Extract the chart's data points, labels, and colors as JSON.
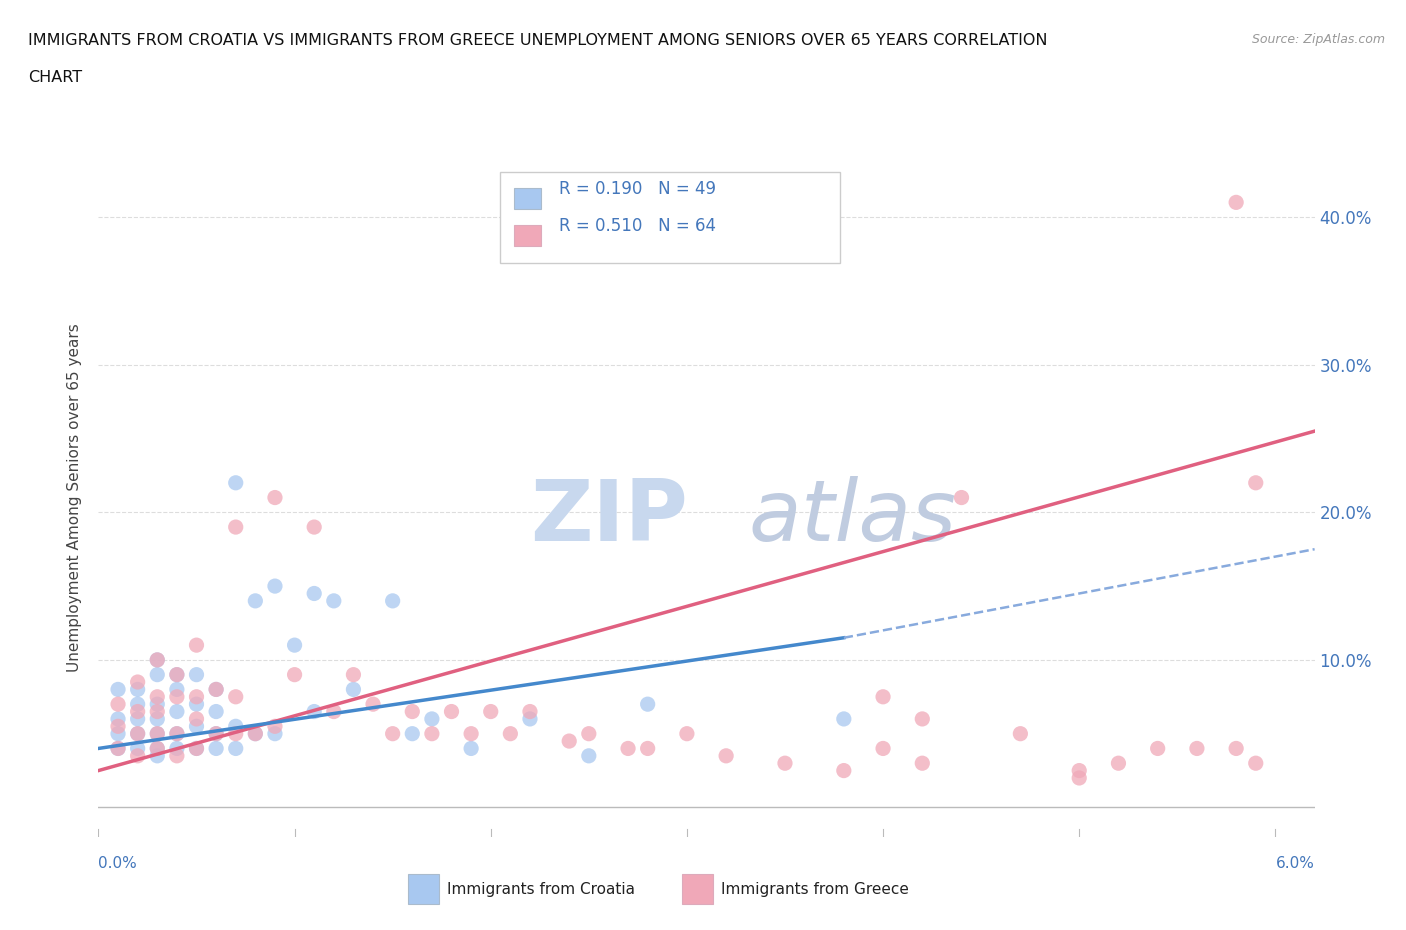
{
  "title_line1": "IMMIGRANTS FROM CROATIA VS IMMIGRANTS FROM GREECE UNEMPLOYMENT AMONG SENIORS OVER 65 YEARS CORRELATION",
  "title_line2": "CHART",
  "source": "Source: ZipAtlas.com",
  "ylabel": "Unemployment Among Seniors over 65 years",
  "ytick_values": [
    0.0,
    0.1,
    0.2,
    0.3,
    0.4
  ],
  "ytick_labels": [
    "",
    "10.0%",
    "20.0%",
    "30.0%",
    "40.0%"
  ],
  "xlim": [
    0.0,
    0.062
  ],
  "ylim": [
    -0.02,
    0.44
  ],
  "color_croatia": "#a8c8f0",
  "color_greece": "#f0a8b8",
  "trendline_color_croatia_solid": "#4488cc",
  "trendline_color_croatia_dashed": "#88aadd",
  "trendline_color_greece": "#e06080",
  "watermark_zip": "#c8d8ee",
  "watermark_atlas": "#c0cce0",
  "grid_color": "#dddddd",
  "bottom_line_color": "#bbbbbb",
  "croatia_x": [
    0.001,
    0.001,
    0.001,
    0.001,
    0.002,
    0.002,
    0.002,
    0.002,
    0.002,
    0.003,
    0.003,
    0.003,
    0.003,
    0.003,
    0.003,
    0.003,
    0.004,
    0.004,
    0.004,
    0.004,
    0.004,
    0.005,
    0.005,
    0.005,
    0.005,
    0.006,
    0.006,
    0.006,
    0.006,
    0.007,
    0.007,
    0.007,
    0.008,
    0.008,
    0.009,
    0.009,
    0.01,
    0.011,
    0.011,
    0.012,
    0.013,
    0.015,
    0.016,
    0.017,
    0.019,
    0.022,
    0.025,
    0.028,
    0.038
  ],
  "croatia_y": [
    0.04,
    0.05,
    0.06,
    0.08,
    0.04,
    0.05,
    0.06,
    0.07,
    0.08,
    0.035,
    0.04,
    0.05,
    0.06,
    0.07,
    0.09,
    0.1,
    0.04,
    0.05,
    0.065,
    0.08,
    0.09,
    0.04,
    0.055,
    0.07,
    0.09,
    0.04,
    0.05,
    0.065,
    0.08,
    0.04,
    0.055,
    0.22,
    0.05,
    0.14,
    0.05,
    0.15,
    0.11,
    0.065,
    0.145,
    0.14,
    0.08,
    0.14,
    0.05,
    0.06,
    0.04,
    0.06,
    0.035,
    0.07,
    0.06
  ],
  "greece_x": [
    0.001,
    0.001,
    0.001,
    0.002,
    0.002,
    0.002,
    0.002,
    0.003,
    0.003,
    0.003,
    0.003,
    0.003,
    0.004,
    0.004,
    0.004,
    0.004,
    0.005,
    0.005,
    0.005,
    0.005,
    0.006,
    0.006,
    0.007,
    0.007,
    0.007,
    0.008,
    0.009,
    0.009,
    0.01,
    0.011,
    0.012,
    0.013,
    0.014,
    0.015,
    0.016,
    0.017,
    0.018,
    0.019,
    0.02,
    0.021,
    0.022,
    0.024,
    0.025,
    0.027,
    0.028,
    0.03,
    0.032,
    0.035,
    0.038,
    0.04,
    0.042,
    0.044,
    0.047,
    0.05,
    0.052,
    0.054,
    0.056,
    0.058,
    0.059,
    0.04,
    0.042,
    0.05,
    0.058,
    0.059
  ],
  "greece_y": [
    0.04,
    0.055,
    0.07,
    0.035,
    0.05,
    0.065,
    0.085,
    0.04,
    0.05,
    0.065,
    0.075,
    0.1,
    0.035,
    0.05,
    0.075,
    0.09,
    0.04,
    0.06,
    0.075,
    0.11,
    0.05,
    0.08,
    0.05,
    0.075,
    0.19,
    0.05,
    0.055,
    0.21,
    0.09,
    0.19,
    0.065,
    0.09,
    0.07,
    0.05,
    0.065,
    0.05,
    0.065,
    0.05,
    0.065,
    0.05,
    0.065,
    0.045,
    0.05,
    0.04,
    0.04,
    0.05,
    0.035,
    0.03,
    0.025,
    0.04,
    0.03,
    0.21,
    0.05,
    0.025,
    0.03,
    0.04,
    0.04,
    0.41,
    0.22,
    0.075,
    0.06,
    0.02,
    0.04,
    0.03
  ],
  "croatia_trendline_x0": 0.0,
  "croatia_trendline_y0": 0.04,
  "croatia_trendline_x1": 0.038,
  "croatia_trendline_y1": 0.115,
  "croatia_trendline_dashed_x1": 0.062,
  "croatia_trendline_dashed_y1": 0.175,
  "greece_trendline_x0": 0.0,
  "greece_trendline_y0": 0.025,
  "greece_trendline_x1": 0.062,
  "greece_trendline_y1": 0.255
}
